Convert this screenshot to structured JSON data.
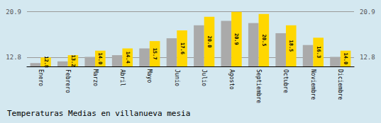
{
  "chart_data": {
    "type": "bar",
    "title": "Temperaturas Medias en villanueva mesia",
    "categories": [
      "Enero",
      "Febrero",
      "Marzo",
      "Abril",
      "Mayo",
      "Junio",
      "Julio",
      "Agosto",
      "Septiembre",
      "Octubre",
      "Noviembre",
      "Diciembre"
    ],
    "series": [
      {
        "color": "#AAAAAA",
        "values": [
          11.8,
          12.1,
          12.9,
          13.2,
          14.4,
          16.2,
          18.5,
          19.3,
          18.9,
          17.1,
          15.0,
          12.9
        ]
      },
      {
        "color": "#FFD700",
        "values": [
          12.8,
          13.2,
          14.0,
          14.4,
          15.7,
          17.6,
          20.0,
          20.9,
          20.5,
          18.5,
          16.3,
          14.0
        ],
        "data_labels": true,
        "value_labels": [
          "12.8",
          "13.2",
          "14.0",
          "14.4",
          "15.7",
          "17.6",
          "20.0",
          "20.9",
          "20.5",
          "18.5",
          "16.3",
          "14.0"
        ]
      }
    ],
    "ylim": [
      11.2,
      21.736
    ],
    "yticks": [
      20.9,
      12.8
    ],
    "y2lim": [
      11.2,
      21.736
    ],
    "y2ticks": [
      20.9,
      12.8
    ],
    "grid": true
  }
}
